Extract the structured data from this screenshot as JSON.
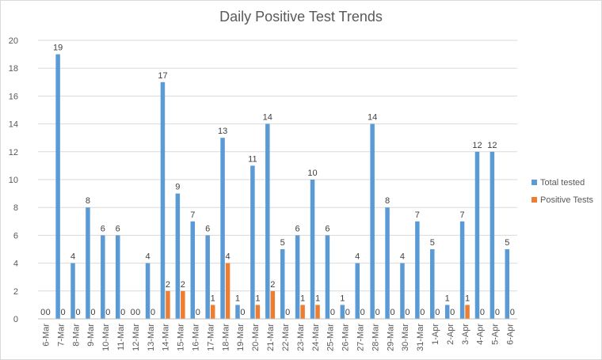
{
  "chart_data": {
    "type": "bar",
    "title": "Daily Positive Test Trends",
    "xlabel": "",
    "ylabel": "",
    "ylim": [
      0,
      20
    ],
    "yticks": [
      0,
      2,
      4,
      6,
      8,
      10,
      12,
      14,
      16,
      18,
      20
    ],
    "grid": true,
    "legend_position": "right",
    "categories": [
      "6-Mar",
      "7-Mar",
      "8-Mar",
      "9-Mar",
      "10-Mar",
      "11-Mar",
      "12-Mar",
      "13-Mar",
      "14-Mar",
      "15-Mar",
      "16-Mar",
      "17-Mar",
      "18-Mar",
      "19-Mar",
      "20-Mar",
      "21-Mar",
      "22-Mar",
      "23-Mar",
      "24-Mar",
      "25-Mar",
      "26-Mar",
      "27-Mar",
      "28-Mar",
      "29-Mar",
      "30-Mar",
      "31-Mar",
      "1-Apr",
      "2-Apr",
      "3-Apr",
      "4-Apr",
      "5-Apr",
      "6-Apr"
    ],
    "series": [
      {
        "name": "Total tested",
        "color": "#5b9bd5",
        "values": [
          0,
          19,
          4,
          8,
          6,
          6,
          0,
          4,
          17,
          9,
          7,
          6,
          13,
          1,
          11,
          14,
          5,
          6,
          10,
          6,
          1,
          4,
          14,
          8,
          4,
          7,
          5,
          1,
          7,
          12,
          12,
          5
        ]
      },
      {
        "name": "Positive Tests",
        "color": "#ed7d31",
        "values": [
          0,
          0,
          0,
          0,
          0,
          0,
          0,
          0,
          2,
          2,
          0,
          1,
          4,
          0,
          1,
          2,
          0,
          1,
          1,
          0,
          0,
          0,
          0,
          0,
          0,
          0,
          0,
          0,
          1,
          0,
          0,
          0
        ]
      }
    ]
  }
}
